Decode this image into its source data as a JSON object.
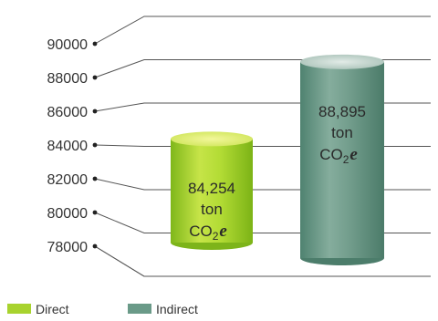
{
  "chart_data": {
    "type": "bar",
    "style": "3d-cylinder",
    "categories": [
      "Direct",
      "Indirect"
    ],
    "values": [
      84254,
      88895
    ],
    "units": "ton CO2e",
    "data_labels": [
      {
        "number": "84,254",
        "unit": "ton",
        "gas": "CO",
        "sub": "2",
        "suffix": "e"
      },
      {
        "number": "88,895",
        "unit": "ton",
        "gas": "CO",
        "sub": "2",
        "suffix": "e"
      }
    ],
    "yticks": [
      "78000",
      "80000",
      "82000",
      "84000",
      "86000",
      "88000",
      "90000"
    ],
    "yticks_values": [
      78000,
      80000,
      82000,
      84000,
      86000,
      88000,
      90000
    ],
    "ylim": [
      78000,
      90000
    ],
    "grid": true,
    "legend": {
      "placement": "bottom-left",
      "entries": [
        {
          "name": "Direct",
          "color": "#a8d32e"
        },
        {
          "name": "Indirect",
          "color": "#6a9a88"
        }
      ]
    },
    "colors": {
      "direct": "#a8d32e",
      "direct_top": "#e8f27a",
      "indirect": "#6a9a88",
      "indirect_top": "#c7d7d0",
      "grid": "#555555"
    }
  }
}
